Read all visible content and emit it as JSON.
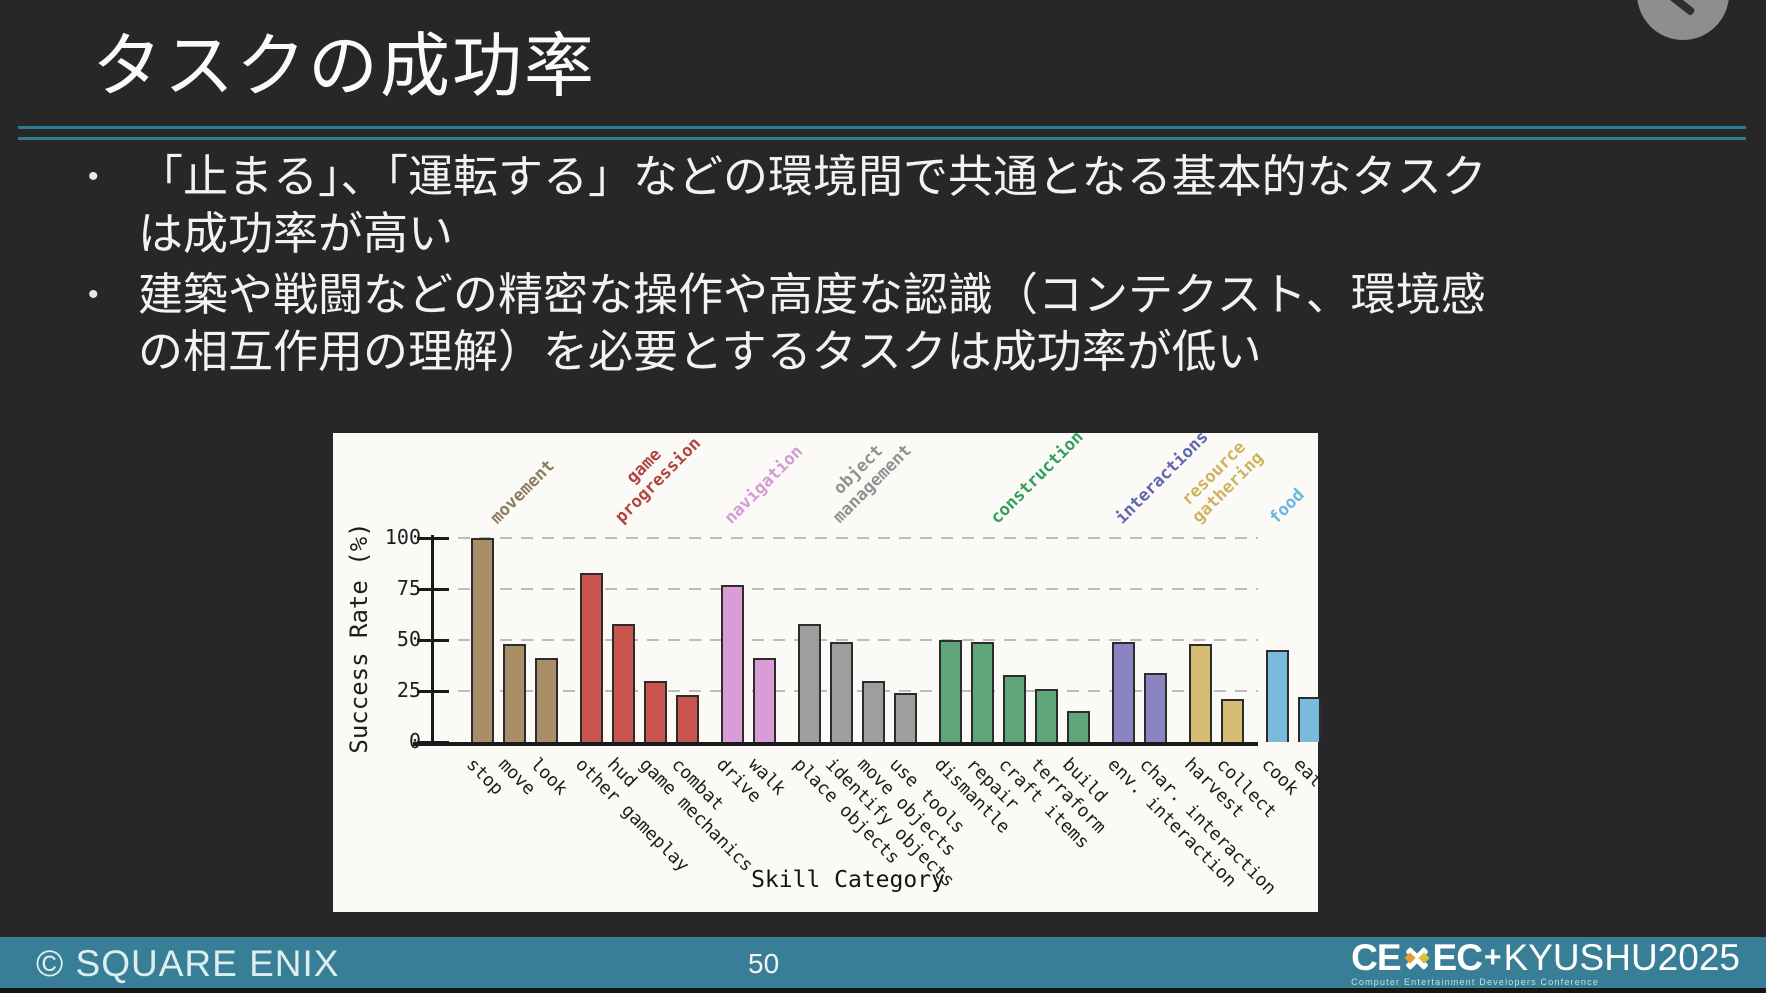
{
  "slide": {
    "title": "タスクの成功率",
    "bullet_char": "•",
    "bullets": [
      "「止まる」、「運転する」などの環境間で共通となる基本的なタスクは成功率が高い",
      "建築や戦闘などの精密な操作や高度な認識（コンテクスト、環境感の相互作用の理解）を必要とするタスクは成功率が低い"
    ],
    "colors": {
      "background": "#272727",
      "separator": "#2e7b95",
      "chart_background": "#fbfaf7",
      "footer_bar": "#377e96"
    }
  },
  "chart_data": {
    "type": "bar",
    "title": "",
    "xlabel": "Skill Category",
    "ylabel": "Success Rate (%)",
    "ylim": [
      0,
      100
    ],
    "yticks": [
      0,
      25,
      50,
      75,
      100
    ],
    "grid": "horizontal dashed gridlines at 25/50/75/100",
    "legend_position": "group labels rotated above bars",
    "groups": [
      {
        "name": "movement",
        "color": "#a78e67",
        "label_color": "#8d7c5d",
        "items": [
          {
            "label": "stop",
            "value": 100
          },
          {
            "label": "move",
            "value": 48
          },
          {
            "label": "look",
            "value": 41
          }
        ]
      },
      {
        "name": "game progression",
        "label_lines": [
          "game",
          "progression"
        ],
        "color": "#c8564f",
        "label_color": "#b04543",
        "items": [
          {
            "label": "other gameplay",
            "value": 83
          },
          {
            "label": "hud",
            "value": 58
          },
          {
            "label": "game mechanics",
            "value": 30
          },
          {
            "label": "combat",
            "value": 23
          }
        ]
      },
      {
        "name": "navigation",
        "color": "#d99cd6",
        "label_color": "#d39bd3",
        "items": [
          {
            "label": "drive",
            "value": 77
          },
          {
            "label": "walk",
            "value": 41
          }
        ]
      },
      {
        "name": "object management",
        "label_lines": [
          "object",
          "management"
        ],
        "color": "#9e9e9e",
        "label_color": "#919191",
        "items": [
          {
            "label": "place objects",
            "value": 58
          },
          {
            "label": "identify objects",
            "value": 49
          },
          {
            "label": "move objects",
            "value": 30
          },
          {
            "label": "use tools",
            "value": 24
          }
        ]
      },
      {
        "name": "construction",
        "color": "#61a67b",
        "label_color": "#31a05b",
        "items": [
          {
            "label": "dismantle",
            "value": 50
          },
          {
            "label": "repair",
            "value": 49
          },
          {
            "label": "craft items",
            "value": 33
          },
          {
            "label": "terraform",
            "value": 26
          },
          {
            "label": "build",
            "value": 15
          }
        ]
      },
      {
        "name": "interactions",
        "color": "#8a84c1",
        "label_color": "#6066b2",
        "items": [
          {
            "label": "env. interaction",
            "value": 49
          },
          {
            "label": "char. interaction",
            "value": 34
          }
        ]
      },
      {
        "name": "resource gathering",
        "label_lines": [
          "resource",
          "gathering"
        ],
        "color": "#d5bc73",
        "label_color": "#cdb45f",
        "items": [
          {
            "label": "harvest",
            "value": 48
          },
          {
            "label": "collect",
            "value": 21
          }
        ]
      },
      {
        "name": "food",
        "color": "#7abbdb",
        "label_color": "#66b8e0",
        "items": [
          {
            "label": "cook",
            "value": 45
          },
          {
            "label": "eat",
            "value": 22
          }
        ]
      }
    ]
  },
  "footer": {
    "copyright": "© SQUARE ENIX",
    "page_number": "50",
    "logo_left": "CE",
    "logo_right": "EC",
    "logo_suffix_plus": "+",
    "logo_suffix": "KYUSHU2025",
    "logo_subtitle": "Computer Entertainment Developers Conference"
  }
}
